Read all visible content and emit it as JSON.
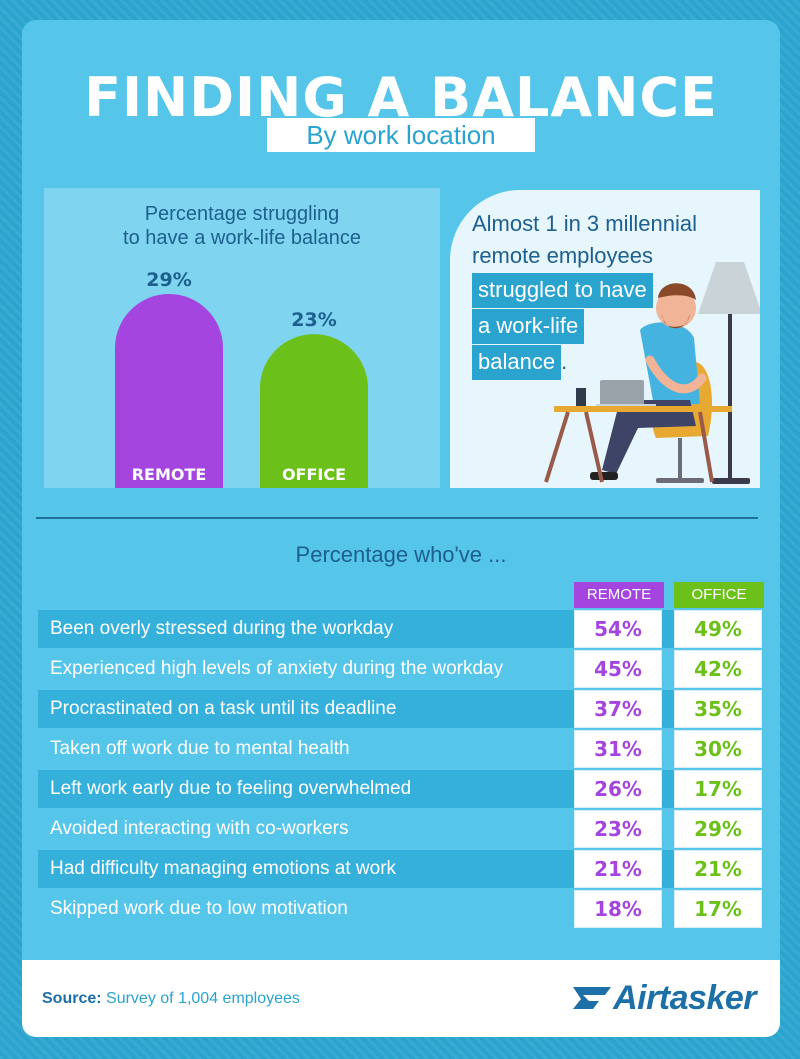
{
  "header": {
    "title": "FINDING A BALANCE",
    "subtitle": "By work location"
  },
  "chart_data": [
    {
      "type": "bar",
      "title": "Percentage struggling to have a work-life balance",
      "title_lines": [
        "Percentage struggling",
        "to have a work-life balance"
      ],
      "categories": [
        "REMOTE",
        "OFFICE"
      ],
      "values": [
        29,
        23
      ],
      "value_labels": [
        "29%",
        "23%"
      ],
      "colors": [
        "#a445e0",
        "#6cc01a"
      ],
      "ylim": [
        0,
        29
      ]
    },
    {
      "type": "table",
      "title": "Percentage who've ...",
      "columns": [
        "REMOTE",
        "OFFICE"
      ],
      "rows": [
        {
          "label": "Been overly stressed during the workday",
          "remote": "54%",
          "office": "49%"
        },
        {
          "label": "Experienced high levels of anxiety during the workday",
          "remote": "45%",
          "office": "42%"
        },
        {
          "label": "Procrastinated on a task until its deadline",
          "remote": "37%",
          "office": "35%"
        },
        {
          "label": "Taken off work due to mental health",
          "remote": "31%",
          "office": "30%"
        },
        {
          "label": "Left work early due to feeling overwhelmed",
          "remote": "26%",
          "office": "17%"
        },
        {
          "label": "Avoided interacting with co-workers",
          "remote": "23%",
          "office": "29%"
        },
        {
          "label": "Had difficulty managing emotions at work",
          "remote": "21%",
          "office": "21%"
        },
        {
          "label": "Skipped work due to low motivation",
          "remote": "18%",
          "office": "17%"
        }
      ]
    }
  ],
  "callout": {
    "line1": "Almost 1 in 3 millennial",
    "line2": "remote employees",
    "highlight1": "struggled to have",
    "highlight2": "a work-life",
    "highlight3": "balance",
    "period": "."
  },
  "footer": {
    "source_label": "Source:",
    "source_text": "Survey of 1,004 employees",
    "brand": "Airtasker"
  },
  "colors": {
    "remote": "#a445e0",
    "office": "#6cc01a",
    "brand": "#1d6fa8",
    "accent": "#2aa4cf"
  }
}
